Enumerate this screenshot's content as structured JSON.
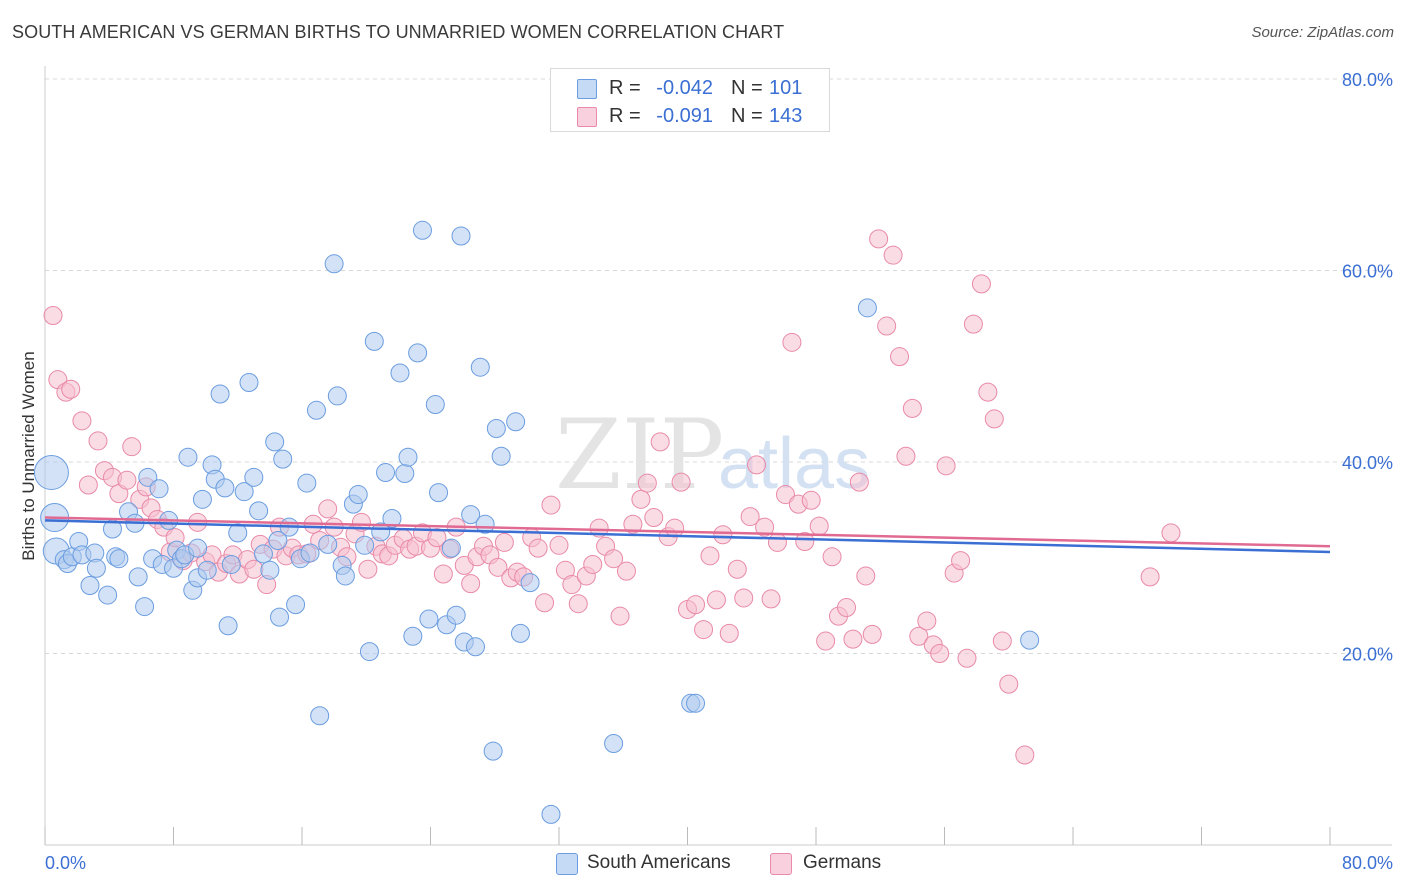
{
  "header": {
    "title": "SOUTH AMERICAN VS GERMAN BIRTHS TO UNMARRIED WOMEN CORRELATION CHART",
    "source": "Source: ZipAtlas.com"
  },
  "legend": {
    "r_label": "R =",
    "n_label": "N =",
    "south_americans": {
      "r": "-0.042",
      "n": "101"
    },
    "germans": {
      "r": "-0.091",
      "n": "143"
    }
  },
  "watermark": {
    "zip": "ZIP",
    "atlas": "atlas"
  },
  "bottom_legend": {
    "south_americans": "South Americans",
    "germans": "Germans"
  },
  "colors": {
    "blue_fill": "#aecbef",
    "blue_stroke": "#6b9de0",
    "blue_line": "#3b6fd3",
    "pink_fill": "#f6bfd0",
    "pink_stroke": "#e98aa8",
    "pink_line": "#e06a92",
    "tick_label": "#3b6fd3",
    "grid": "#d8d8d8"
  },
  "chart_data": {
    "type": "scatter",
    "title": "SOUTH AMERICAN VS GERMAN BIRTHS TO UNMARRIED WOMEN CORRELATION CHART",
    "xlabel": "",
    "ylabel": "Births to Unmarried Women",
    "xlim": [
      0,
      80
    ],
    "ylim": [
      0,
      80
    ],
    "x_tick_labels": [
      "0.0%",
      "80.0%"
    ],
    "y_tick_labels": [
      "20.0%",
      "40.0%",
      "60.0%",
      "80.0%"
    ],
    "y_ticks": [
      20,
      40,
      60,
      80
    ],
    "grid": true,
    "legend_position": "top-center",
    "series": [
      {
        "name": "South Americans",
        "color": "#6b9de0",
        "trend": {
          "x": [
            0,
            80
          ],
          "y": [
            33.9,
            30.6
          ]
        },
        "points": [
          [
            0.4,
            38.9
          ],
          [
            0.6,
            34.2
          ],
          [
            0.7,
            30.7
          ],
          [
            1.2,
            29.8
          ],
          [
            1.4,
            29.4
          ],
          [
            1.7,
            30.1
          ],
          [
            2.1,
            31.7
          ],
          [
            2.3,
            30.3
          ],
          [
            2.8,
            27.1
          ],
          [
            3.1,
            30.5
          ],
          [
            3.2,
            28.9
          ],
          [
            3.9,
            26.1
          ],
          [
            4.2,
            33.0
          ],
          [
            4.4,
            30.1
          ],
          [
            4.6,
            29.9
          ],
          [
            5.2,
            34.8
          ],
          [
            5.6,
            33.6
          ],
          [
            5.8,
            28.0
          ],
          [
            6.2,
            24.9
          ],
          [
            6.4,
            38.4
          ],
          [
            6.7,
            29.9
          ],
          [
            7.1,
            37.2
          ],
          [
            7.3,
            29.3
          ],
          [
            7.7,
            33.9
          ],
          [
            8.0,
            28.9
          ],
          [
            8.2,
            30.8
          ],
          [
            8.5,
            29.9
          ],
          [
            8.7,
            30.3
          ],
          [
            8.9,
            40.5
          ],
          [
            9.2,
            26.6
          ],
          [
            9.5,
            27.9
          ],
          [
            9.8,
            36.1
          ],
          [
            10.1,
            28.7
          ],
          [
            10.4,
            39.7
          ],
          [
            10.6,
            38.2
          ],
          [
            10.9,
            47.1
          ],
          [
            11.2,
            37.3
          ],
          [
            11.4,
            22.9
          ],
          [
            11.6,
            29.3
          ],
          [
            12.0,
            32.6
          ],
          [
            12.4,
            36.9
          ],
          [
            12.7,
            48.3
          ],
          [
            13.0,
            38.4
          ],
          [
            13.3,
            34.9
          ],
          [
            13.6,
            30.4
          ],
          [
            14.0,
            28.7
          ],
          [
            14.3,
            42.1
          ],
          [
            14.6,
            23.8
          ],
          [
            14.8,
            40.3
          ],
          [
            15.2,
            33.2
          ],
          [
            15.6,
            25.1
          ],
          [
            15.9,
            29.9
          ],
          [
            16.3,
            37.8
          ],
          [
            16.5,
            30.5
          ],
          [
            16.9,
            45.4
          ],
          [
            17.1,
            13.5
          ],
          [
            17.6,
            31.4
          ],
          [
            18.0,
            60.7
          ],
          [
            18.2,
            46.9
          ],
          [
            18.5,
            29.2
          ],
          [
            18.7,
            28.1
          ],
          [
            19.2,
            35.6
          ],
          [
            19.5,
            36.6
          ],
          [
            19.9,
            31.3
          ],
          [
            20.2,
            20.2
          ],
          [
            20.5,
            52.6
          ],
          [
            20.9,
            32.7
          ],
          [
            21.2,
            38.9
          ],
          [
            21.6,
            34.1
          ],
          [
            22.1,
            49.3
          ],
          [
            22.4,
            38.8
          ],
          [
            22.6,
            40.5
          ],
          [
            22.9,
            21.8
          ],
          [
            23.2,
            51.4
          ],
          [
            23.9,
            23.6
          ],
          [
            24.3,
            46.0
          ],
          [
            24.5,
            36.8
          ],
          [
            25.0,
            23.0
          ],
          [
            25.3,
            31.0
          ],
          [
            25.6,
            24.0
          ],
          [
            25.9,
            63.6
          ],
          [
            26.1,
            21.2
          ],
          [
            26.5,
            34.5
          ],
          [
            26.8,
            20.7
          ],
          [
            27.1,
            49.9
          ],
          [
            27.4,
            33.5
          ],
          [
            27.9,
            9.8
          ],
          [
            28.1,
            43.5
          ],
          [
            28.4,
            40.6
          ],
          [
            29.3,
            44.2
          ],
          [
            29.6,
            22.1
          ],
          [
            30.2,
            27.4
          ],
          [
            31.5,
            3.2
          ],
          [
            35.4,
            10.6
          ],
          [
            40.2,
            14.8
          ],
          [
            40.5,
            14.8
          ],
          [
            51.2,
            56.1
          ],
          [
            61.3,
            21.4
          ],
          [
            23.5,
            64.2
          ],
          [
            9.5,
            31.0
          ],
          [
            14.5,
            31.8
          ]
        ]
      },
      {
        "name": "Germans",
        "color": "#e98aa8",
        "trend": {
          "x": [
            0,
            80
          ],
          "y": [
            34.2,
            31.2
          ]
        },
        "points": [
          [
            0.5,
            55.3
          ],
          [
            0.8,
            48.6
          ],
          [
            1.3,
            47.3
          ],
          [
            1.6,
            47.6
          ],
          [
            2.3,
            44.3
          ],
          [
            2.7,
            37.6
          ],
          [
            3.3,
            42.2
          ],
          [
            3.7,
            39.1
          ],
          [
            4.2,
            38.4
          ],
          [
            4.6,
            36.7
          ],
          [
            5.1,
            38.1
          ],
          [
            5.4,
            41.6
          ],
          [
            5.9,
            36.1
          ],
          [
            6.3,
            37.4
          ],
          [
            6.6,
            35.2
          ],
          [
            7.0,
            34.0
          ],
          [
            7.4,
            33.2
          ],
          [
            7.8,
            30.6
          ],
          [
            8.1,
            32.1
          ],
          [
            8.6,
            29.7
          ],
          [
            9.1,
            30.5
          ],
          [
            9.5,
            33.7
          ],
          [
            10.0,
            29.6
          ],
          [
            10.4,
            30.3
          ],
          [
            10.8,
            28.5
          ],
          [
            11.3,
            29.4
          ],
          [
            11.7,
            30.3
          ],
          [
            12.1,
            28.3
          ],
          [
            12.6,
            29.8
          ],
          [
            13.0,
            28.8
          ],
          [
            13.4,
            31.4
          ],
          [
            13.8,
            27.2
          ],
          [
            14.2,
            30.9
          ],
          [
            14.6,
            33.2
          ],
          [
            15.0,
            30.2
          ],
          [
            15.4,
            31.0
          ],
          [
            15.8,
            30.3
          ],
          [
            16.3,
            30.4
          ],
          [
            16.7,
            33.5
          ],
          [
            17.1,
            31.8
          ],
          [
            17.6,
            35.1
          ],
          [
            18.0,
            33.2
          ],
          [
            18.4,
            31.1
          ],
          [
            18.8,
            30.1
          ],
          [
            19.3,
            32.5
          ],
          [
            19.7,
            33.7
          ],
          [
            20.1,
            28.8
          ],
          [
            20.6,
            31.2
          ],
          [
            21.0,
            30.4
          ],
          [
            21.4,
            30.2
          ],
          [
            21.8,
            31.3
          ],
          [
            22.3,
            32.0
          ],
          [
            22.7,
            30.9
          ],
          [
            23.1,
            31.2
          ],
          [
            23.5,
            32.6
          ],
          [
            24.0,
            31.0
          ],
          [
            24.4,
            32.1
          ],
          [
            24.8,
            28.3
          ],
          [
            25.2,
            30.9
          ],
          [
            25.6,
            33.2
          ],
          [
            26.1,
            29.2
          ],
          [
            26.5,
            27.3
          ],
          [
            26.9,
            30.1
          ],
          [
            27.3,
            31.2
          ],
          [
            27.7,
            30.3
          ],
          [
            28.2,
            29.0
          ],
          [
            28.6,
            31.6
          ],
          [
            29.0,
            27.9
          ],
          [
            29.4,
            28.5
          ],
          [
            29.8,
            28.0
          ],
          [
            30.3,
            32.1
          ],
          [
            30.7,
            31.0
          ],
          [
            31.1,
            25.3
          ],
          [
            31.5,
            35.5
          ],
          [
            32.0,
            31.3
          ],
          [
            32.4,
            28.7
          ],
          [
            32.8,
            27.2
          ],
          [
            33.2,
            25.2
          ],
          [
            33.7,
            28.1
          ],
          [
            34.1,
            29.3
          ],
          [
            34.5,
            33.1
          ],
          [
            34.9,
            31.2
          ],
          [
            35.4,
            29.9
          ],
          [
            35.8,
            23.9
          ],
          [
            36.2,
            28.6
          ],
          [
            36.6,
            33.5
          ],
          [
            37.1,
            36.1
          ],
          [
            37.5,
            37.8
          ],
          [
            37.9,
            34.2
          ],
          [
            38.3,
            42.1
          ],
          [
            38.8,
            32.2
          ],
          [
            39.2,
            33.1
          ],
          [
            39.6,
            37.9
          ],
          [
            40.0,
            24.6
          ],
          [
            40.5,
            25.1
          ],
          [
            41.0,
            22.5
          ],
          [
            41.4,
            30.2
          ],
          [
            41.8,
            25.6
          ],
          [
            42.2,
            32.4
          ],
          [
            42.6,
            22.1
          ],
          [
            43.1,
            28.8
          ],
          [
            43.5,
            25.8
          ],
          [
            43.9,
            34.3
          ],
          [
            44.3,
            39.7
          ],
          [
            44.8,
            33.2
          ],
          [
            45.2,
            25.7
          ],
          [
            45.6,
            31.6
          ],
          [
            46.1,
            36.6
          ],
          [
            46.5,
            52.5
          ],
          [
            46.9,
            35.6
          ],
          [
            47.3,
            31.7
          ],
          [
            47.7,
            36.0
          ],
          [
            48.2,
            33.3
          ],
          [
            48.6,
            21.3
          ],
          [
            49.0,
            30.1
          ],
          [
            49.4,
            23.9
          ],
          [
            49.9,
            24.8
          ],
          [
            50.3,
            21.5
          ],
          [
            50.7,
            37.9
          ],
          [
            51.1,
            28.1
          ],
          [
            51.5,
            22.0
          ],
          [
            51.9,
            63.3
          ],
          [
            52.4,
            54.2
          ],
          [
            52.8,
            61.6
          ],
          [
            53.2,
            51.0
          ],
          [
            53.6,
            40.6
          ],
          [
            54.0,
            45.6
          ],
          [
            54.4,
            21.8
          ],
          [
            54.9,
            23.4
          ],
          [
            55.3,
            20.9
          ],
          [
            55.7,
            20.0
          ],
          [
            56.1,
            39.6
          ],
          [
            56.6,
            28.4
          ],
          [
            57.0,
            29.7
          ],
          [
            57.4,
            19.5
          ],
          [
            57.8,
            54.4
          ],
          [
            58.3,
            58.6
          ],
          [
            58.7,
            47.3
          ],
          [
            59.1,
            44.5
          ],
          [
            59.6,
            21.3
          ],
          [
            60.0,
            16.8
          ],
          [
            61.0,
            9.4
          ],
          [
            68.8,
            28.0
          ],
          [
            70.1,
            32.6
          ]
        ]
      }
    ]
  }
}
